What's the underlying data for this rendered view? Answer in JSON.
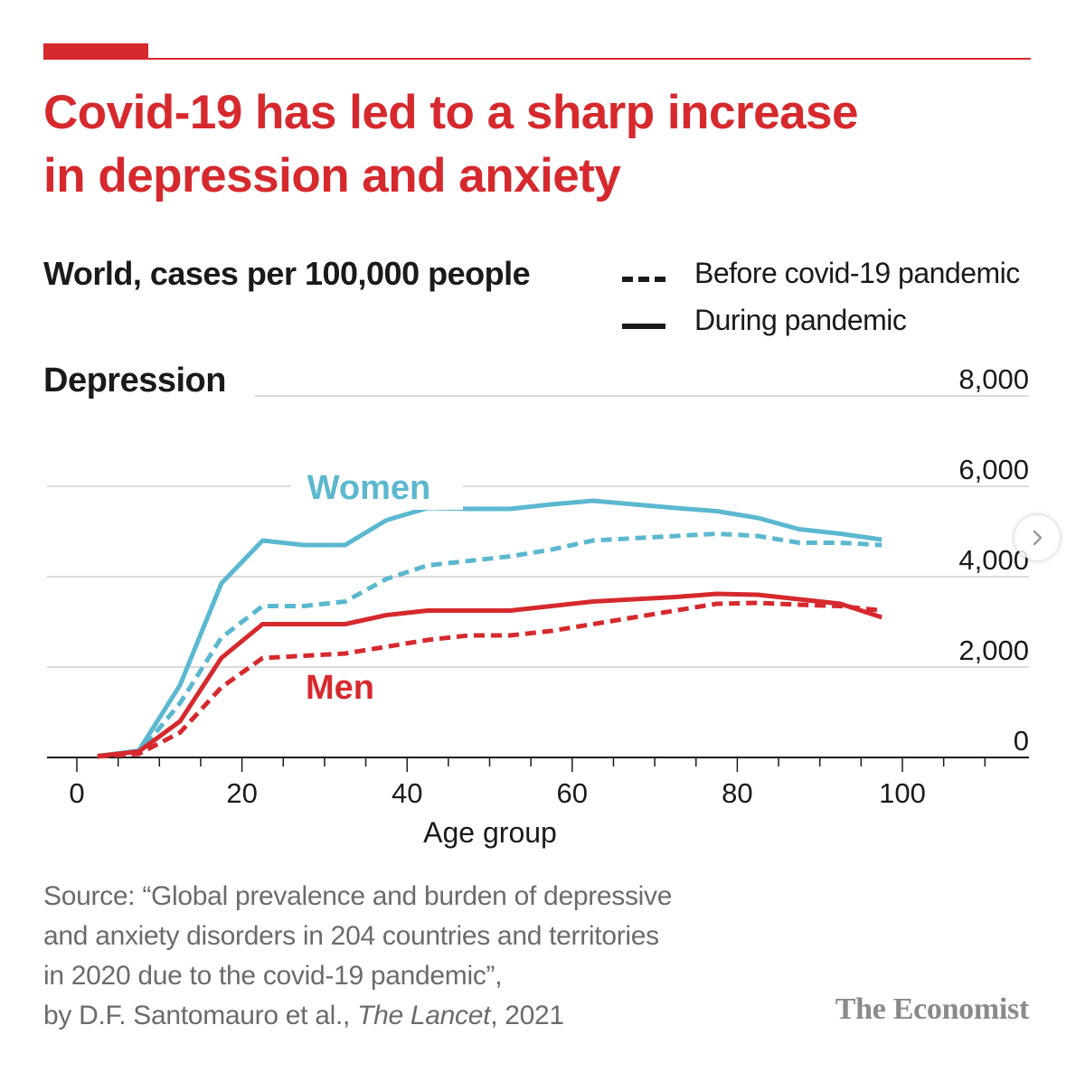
{
  "header": {
    "title_line1": "Covid-19 has led to a sharp increase",
    "title_line2": "in depression and anxiety",
    "subtitle": "World, cases per 100,000 people"
  },
  "legend": {
    "before_label": "Before covid-19 pandemic",
    "during_label": "During pandemic"
  },
  "source": {
    "line1": "Source: “Global prevalence and burden of depressive",
    "line2": "and anxiety disorders in 204 countries and territories",
    "line3": "in 2020 due to the covid-19 pandemic”,",
    "line4_prefix": "by D.F.  Santomauro et al., ",
    "journal": "The Lancet",
    "line4_suffix": ", 2021"
  },
  "brand": "The Economist",
  "colors": {
    "title_red": "#d6292e",
    "women": "#5bb8cf",
    "men": "#d6292e"
  },
  "chart_data": {
    "type": "line",
    "title": "Depression",
    "xlabel": "Age group",
    "ylabel": "",
    "xlim": [
      0,
      115
    ],
    "ylim": [
      0,
      8000
    ],
    "x_ticks": [
      0,
      20,
      40,
      60,
      80,
      100
    ],
    "x_tick_labels": [
      "0",
      "20",
      "40",
      "60",
      "80",
      "100"
    ],
    "y_ticks": [
      0,
      2000,
      4000,
      6000,
      8000
    ],
    "y_tick_labels": [
      "0",
      "2,000",
      "4,000",
      "6,000",
      "8,000"
    ],
    "grid": true,
    "legend_position": "top-right",
    "x": [
      2.5,
      7.5,
      12.5,
      17.5,
      22.5,
      27.5,
      32.5,
      37.5,
      42.5,
      47.5,
      52.5,
      57.5,
      62.5,
      67.5,
      72.5,
      77.5,
      82.5,
      87.5,
      92.5,
      97.5
    ],
    "series": [
      {
        "name": "Women",
        "period": "During pandemic",
        "style": "solid",
        "values": [
          30,
          150,
          1600,
          3850,
          4800,
          4700,
          4700,
          5250,
          5520,
          5500,
          5500,
          5600,
          5680,
          5600,
          5520,
          5450,
          5300,
          5050,
          4950,
          4820
        ]
      },
      {
        "name": "Women",
        "period": "Before covid-19 pandemic",
        "style": "dashed",
        "values": [
          30,
          100,
          1200,
          2650,
          3350,
          3350,
          3450,
          3950,
          4250,
          4350,
          4450,
          4600,
          4800,
          4850,
          4900,
          4950,
          4900,
          4750,
          4750,
          4700
        ]
      },
      {
        "name": "Men",
        "period": "During pandemic",
        "style": "solid",
        "values": [
          30,
          130,
          800,
          2200,
          2950,
          2950,
          2950,
          3150,
          3250,
          3250,
          3250,
          3350,
          3450,
          3500,
          3550,
          3620,
          3600,
          3500,
          3400,
          3100
        ]
      },
      {
        "name": "Men",
        "period": "Before covid-19 pandemic",
        "style": "dashed",
        "values": [
          20,
          80,
          550,
          1550,
          2200,
          2250,
          2300,
          2450,
          2600,
          2700,
          2700,
          2800,
          2950,
          3100,
          3250,
          3400,
          3420,
          3380,
          3350,
          3250
        ]
      }
    ],
    "annotations": {
      "women_label": "Women",
      "men_label": "Men"
    }
  }
}
